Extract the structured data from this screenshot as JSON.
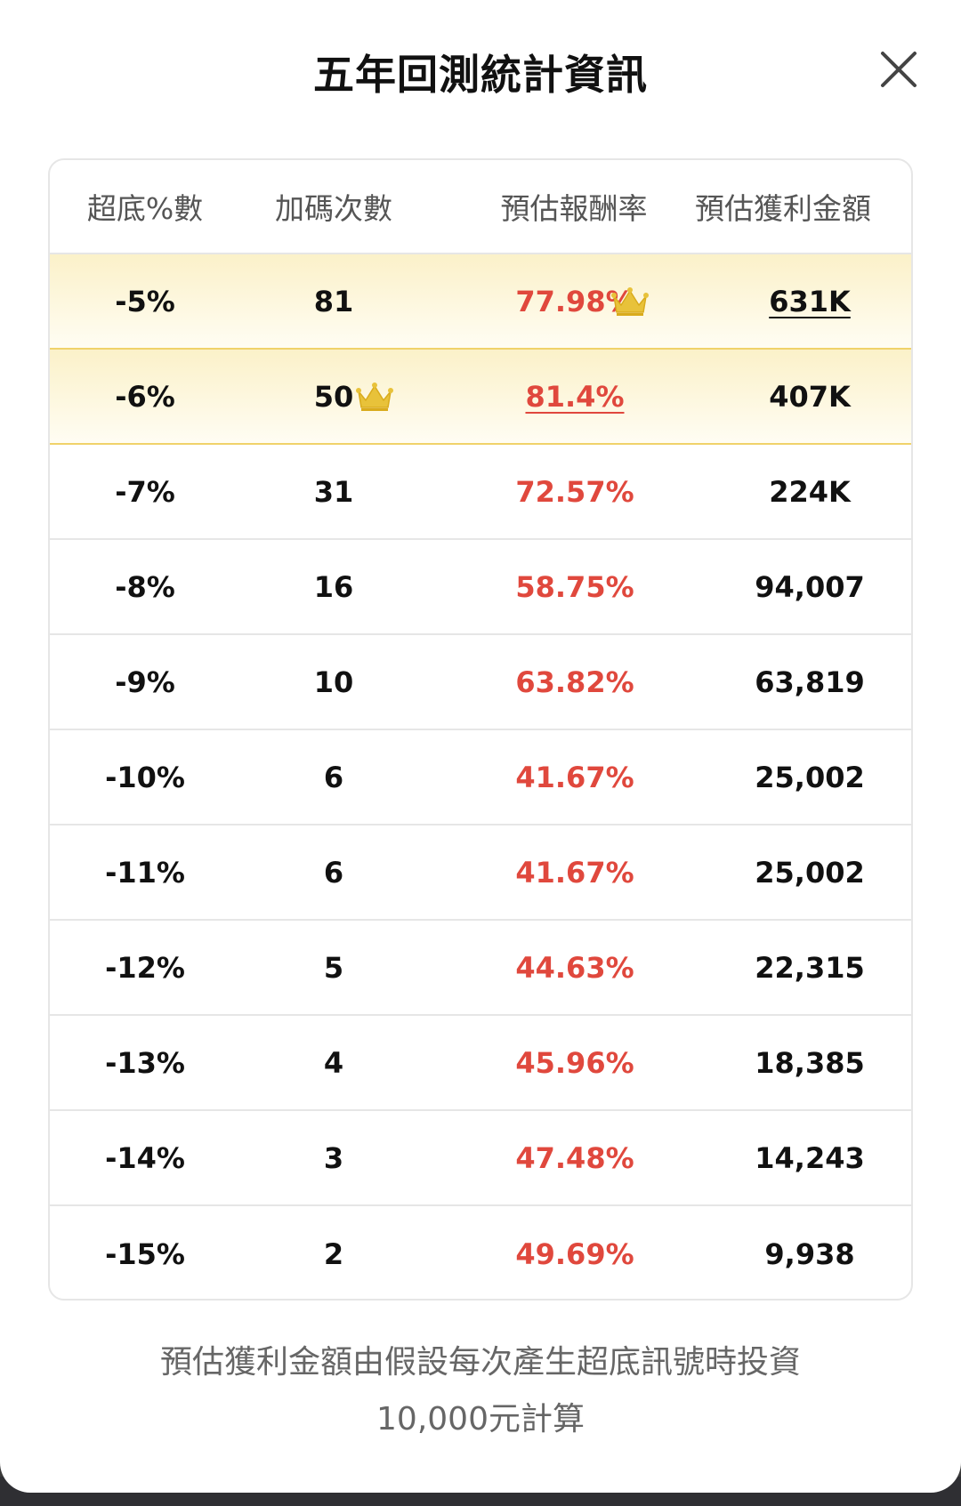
{
  "modal": {
    "title": "五年回測統計資訊"
  },
  "table": {
    "headers": [
      "超底%數",
      "加碼次數",
      "預估報酬率",
      "預估獲利金額"
    ],
    "rows": [
      {
        "threshold": "-5%",
        "count": "81",
        "rate": "77.98%",
        "profit": "631K",
        "highlight": true,
        "crown": "profit"
      },
      {
        "threshold": "-6%",
        "count": "50",
        "rate": "81.4%",
        "profit": "407K",
        "highlight": true,
        "crown": "rate"
      },
      {
        "threshold": "-7%",
        "count": "31",
        "rate": "72.57%",
        "profit": "224K"
      },
      {
        "threshold": "-8%",
        "count": "16",
        "rate": "58.75%",
        "profit": "94,007"
      },
      {
        "threshold": "-9%",
        "count": "10",
        "rate": "63.82%",
        "profit": "63,819"
      },
      {
        "threshold": "-10%",
        "count": "6",
        "rate": "41.67%",
        "profit": "25,002"
      },
      {
        "threshold": "-11%",
        "count": "6",
        "rate": "41.67%",
        "profit": "25,002"
      },
      {
        "threshold": "-12%",
        "count": "5",
        "rate": "44.63%",
        "profit": "22,315"
      },
      {
        "threshold": "-13%",
        "count": "4",
        "rate": "45.96%",
        "profit": "18,385"
      },
      {
        "threshold": "-14%",
        "count": "3",
        "rate": "47.48%",
        "profit": "14,243"
      },
      {
        "threshold": "-15%",
        "count": "2",
        "rate": "49.69%",
        "profit": "9,938"
      }
    ]
  },
  "footnote": {
    "line1": "預估獲利金額由假設每次產生超底訊號時投資",
    "line2": "10,000元計算"
  },
  "icons": {
    "close": "close-icon",
    "crown": "crown-icon"
  },
  "colors": {
    "rate": "#e0483d",
    "highlight": "#fbf1c9",
    "crown": "#e8c23a"
  }
}
